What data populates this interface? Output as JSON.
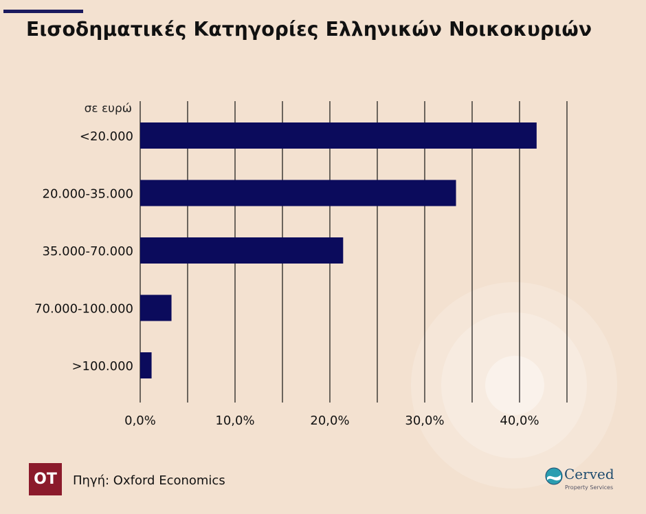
{
  "title": "Εισοδηματικές Κατηγορίες Ελληνικών Νοικοκυριών",
  "source": "Πηγή: Oxford Economics",
  "logos": {
    "publisher": "OT",
    "partner": "Cerved",
    "partner_sub": "Property Services"
  },
  "colors": {
    "background": "#f3e1d0",
    "bar": "#0b0b5c",
    "title_rule": "#1a1a5e",
    "publisher_logo": "#8b1a2b",
    "partner_logo": "#1e4b6e"
  },
  "chart_data": {
    "type": "bar",
    "orientation": "horizontal",
    "unit_label": "σε ευρώ",
    "categories": [
      "<20.000",
      "20.000-35.000",
      "35.000-70.000",
      "70.000-100.000",
      ">100.000"
    ],
    "values": [
      41.8,
      33.3,
      21.4,
      3.3,
      1.2
    ],
    "xlim": [
      0,
      45
    ],
    "x_ticks": [
      0,
      10,
      20,
      30,
      40
    ],
    "x_tick_labels": [
      "0,0%",
      "10,0%",
      "20,0%",
      "30,0%",
      "40,0%"
    ],
    "x_gridlines": [
      0,
      5,
      10,
      15,
      20,
      25,
      30,
      35,
      40,
      45
    ],
    "grid": true,
    "legend": false
  }
}
